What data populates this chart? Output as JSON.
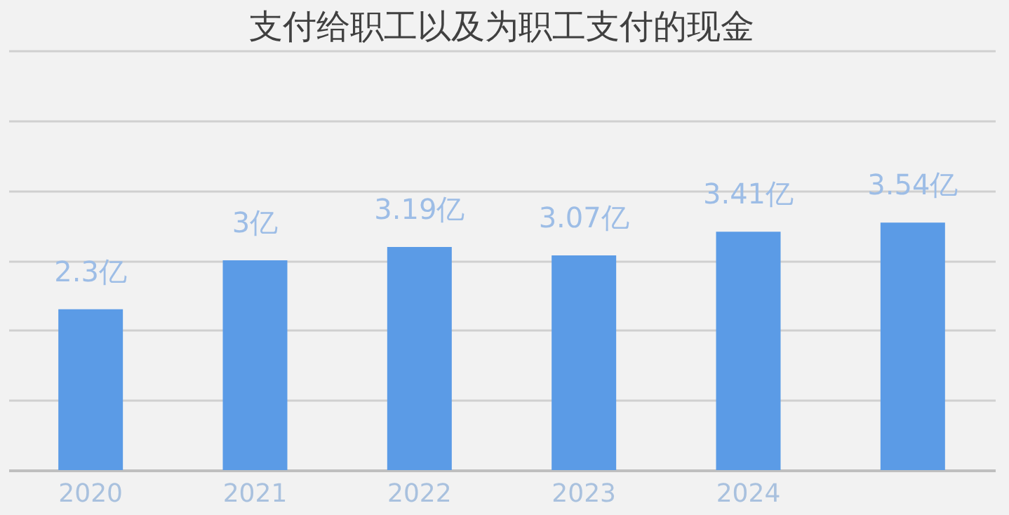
{
  "chart_data": {
    "type": "bar",
    "title": "支付给职工以及为职工支付的现金",
    "categories": [
      "2020",
      "2021",
      "2022",
      "2023",
      "2024",
      null
    ],
    "values": [
      2.3,
      3,
      3.19,
      3.07,
      3.41,
      3.54
    ],
    "value_labels": [
      "2.3亿",
      "3亿",
      "3.19亿",
      "3.07亿",
      "3.41亿",
      "3.54亿"
    ],
    "color": "#5b9be6",
    "ylim": [
      0,
      6
    ],
    "yticks": [
      {
        "value": 0,
        "label": null
      },
      {
        "value": 1,
        "label": null
      },
      {
        "value": 2,
        "label": null
      },
      {
        "value": 3,
        "label": null
      },
      {
        "value": 4,
        "label": null
      },
      {
        "value": 5,
        "label": null
      },
      {
        "value": 6,
        "label": null
      }
    ],
    "grid": "y",
    "tick_labels": "x"
  }
}
